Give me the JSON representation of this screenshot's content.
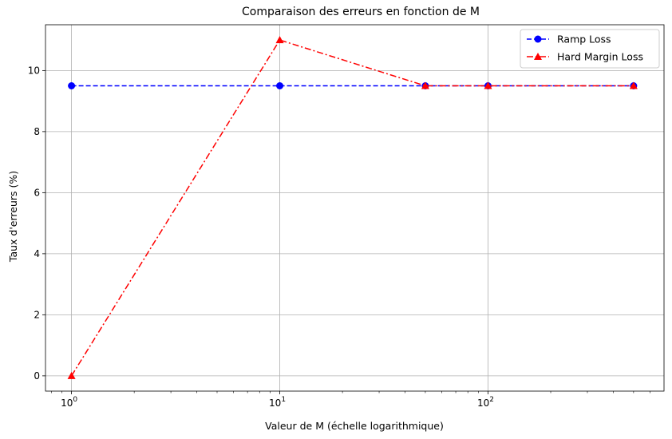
{
  "chart_data": {
    "type": "line",
    "title": "Comparaison des erreurs en fonction de M",
    "xlabel": "Valeur de M (échelle logarithmique)",
    "ylabel": "Taux d'erreurs (%)",
    "xscale": "log",
    "xlim": [
      0.75,
      700
    ],
    "ylim": [
      -0.5,
      11.5
    ],
    "xticks": [
      {
        "value": 1,
        "base": "10",
        "exp": "0"
      },
      {
        "value": 10,
        "base": "10",
        "exp": "1"
      },
      {
        "value": 100,
        "base": "10",
        "exp": "2"
      }
    ],
    "yticks": [
      {
        "value": 0,
        "label": "0"
      },
      {
        "value": 2,
        "label": "2"
      },
      {
        "value": 4,
        "label": "4"
      },
      {
        "value": 6,
        "label": "6"
      },
      {
        "value": 8,
        "label": "8"
      },
      {
        "value": 10,
        "label": "10"
      }
    ],
    "grid": true,
    "legend_position": "top-right",
    "series": [
      {
        "name": "Ramp Loss",
        "x": [
          1,
          10,
          50,
          100,
          500
        ],
        "y": [
          9.5,
          9.5,
          9.5,
          9.5,
          9.5
        ],
        "color": "#0000ff",
        "linestyle": "dashed",
        "marker": "circle"
      },
      {
        "name": "Hard Margin Loss",
        "x": [
          1,
          10,
          50,
          100,
          500
        ],
        "y": [
          0,
          11,
          9.5,
          9.5,
          9.5
        ],
        "color": "#ff0000",
        "linestyle": "dashdot",
        "marker": "triangle"
      }
    ]
  }
}
